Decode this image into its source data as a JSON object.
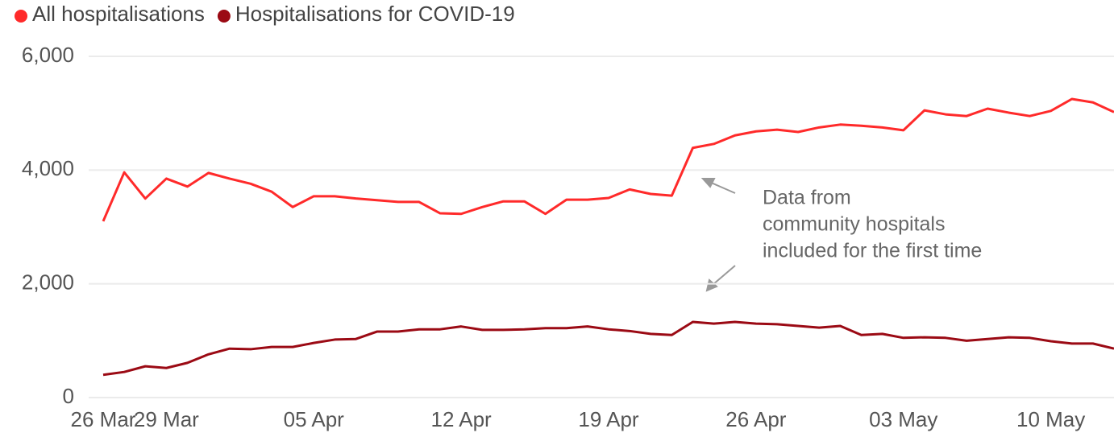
{
  "chart_data": {
    "type": "line",
    "categories": [
      "26 Mar",
      null,
      null,
      "29 Mar",
      null,
      null,
      null,
      null,
      null,
      null,
      "05 Apr",
      null,
      null,
      null,
      null,
      null,
      null,
      "12 Apr",
      null,
      null,
      null,
      null,
      null,
      null,
      "19 Apr",
      null,
      null,
      null,
      null,
      null,
      null,
      "26 Apr",
      null,
      null,
      null,
      null,
      null,
      null,
      "03 May",
      null,
      null,
      null,
      null,
      null,
      null,
      "10 May",
      null,
      null,
      null
    ],
    "series": [
      {
        "name": "All hospitalisations",
        "color": "#ff2a2a",
        "values": [
          3100,
          3960,
          3500,
          3850,
          3710,
          3950,
          3850,
          3760,
          3620,
          3350,
          3540,
          3540,
          3500,
          3470,
          3440,
          3440,
          3240,
          3230,
          3350,
          3450,
          3450,
          3230,
          3480,
          3480,
          3510,
          3660,
          3580,
          3550,
          4390,
          4460,
          4610,
          4680,
          4710,
          4670,
          4750,
          4800,
          4780,
          4750,
          4700,
          5050,
          4980,
          4950,
          5080,
          5010,
          4950,
          5040,
          5250,
          5190,
          5020
        ]
      },
      {
        "name": "Hospitalisations for COVID-19",
        "color": "#9b0a14",
        "values": [
          400,
          450,
          550,
          520,
          610,
          760,
          860,
          850,
          890,
          890,
          960,
          1020,
          1030,
          1160,
          1160,
          1200,
          1200,
          1250,
          1190,
          1190,
          1200,
          1220,
          1220,
          1250,
          1200,
          1170,
          1120,
          1100,
          1330,
          1300,
          1330,
          1300,
          1290,
          1260,
          1230,
          1260,
          1100,
          1120,
          1050,
          1060,
          1050,
          1000,
          1030,
          1060,
          1050,
          990,
          950,
          950,
          860
        ]
      }
    ],
    "ylim": [
      0,
      6000
    ],
    "yticks": [
      0,
      {
        "value": 2000,
        "label": "2,000"
      },
      {
        "value": 4000,
        "label": "4,000"
      },
      {
        "value": 6000,
        "label": "6,000"
      }
    ],
    "grid": true,
    "legend": "top-left",
    "annotation": [
      "Data from",
      "community hospitals",
      "included for the first time"
    ]
  }
}
